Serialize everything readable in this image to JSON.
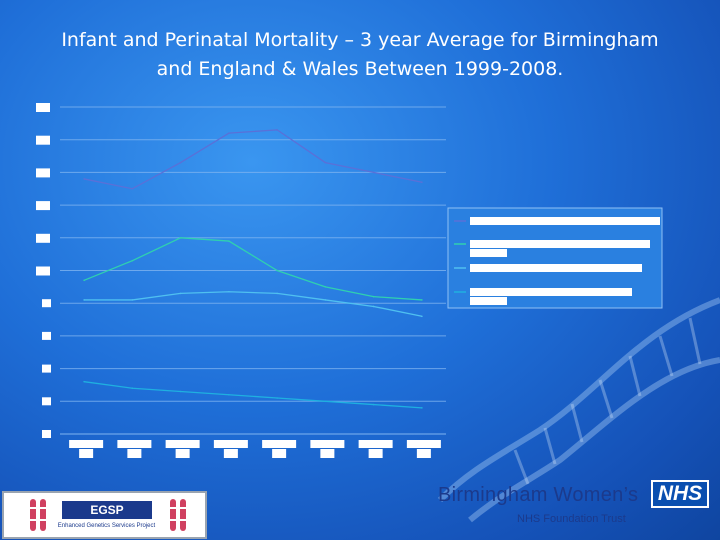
{
  "slide": {
    "title_line1": "Infant and Perinatal Mortality – 3 year Average for Birmingham",
    "title_line2": "and England & Wales Between 1999-2008."
  },
  "colors": {
    "background": "#1f6fd8",
    "gridline": "#7fb4f0",
    "series_birmingham_perinatal": "#5a70d8",
    "series_birmingham_infant": "#2fd0b0",
    "series_ew_perinatal": "#4fc0f0",
    "series_ew_infant": "#1fb0e0",
    "placeholder_white": "#ffffff"
  },
  "chart_data": {
    "type": "line",
    "title": "",
    "xlabel": "",
    "ylabel": "",
    "categories": [
      "",
      "",
      "",
      "",
      "",
      "",
      "",
      ""
    ],
    "y_tick_labels": [
      "",
      "",
      "",
      "",
      "",
      "",
      "",
      "",
      "",
      "",
      ""
    ],
    "ylim": [
      0,
      10
    ],
    "grid": true,
    "legend_placement": "right",
    "series": [
      {
        "name": "",
        "values": [
          7.8,
          7.5,
          8.3,
          9.2,
          9.3,
          8.3,
          8.0,
          7.7
        ]
      },
      {
        "name": "",
        "values": [
          4.7,
          5.3,
          6.0,
          5.9,
          5.0,
          4.5,
          4.2,
          4.1
        ]
      },
      {
        "name": "",
        "values": [
          4.1,
          4.1,
          4.3,
          4.35,
          4.3,
          4.1,
          3.9,
          3.6
        ]
      },
      {
        "name": "",
        "values": [
          1.6,
          1.4,
          1.3,
          1.2,
          1.1,
          1.0,
          0.9,
          0.8
        ]
      }
    ]
  },
  "branding": {
    "egsp_logo_text": "EGSP",
    "egsp_subtitle": "Enhanced Genetics Services Project",
    "organisation_name": "Birmingham Women’s",
    "nhs_logo_text": "NHS",
    "trust_label": "NHS Foundation Trust"
  }
}
